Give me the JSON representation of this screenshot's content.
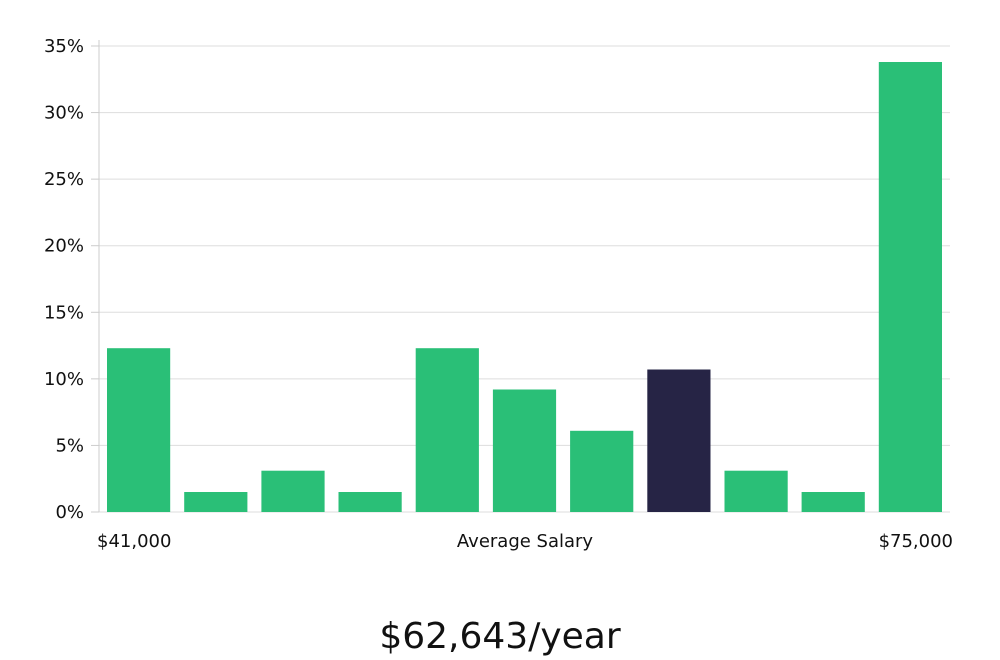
{
  "chart_data": {
    "type": "bar",
    "title": "",
    "xlabel": "Average Salary",
    "ylabel": "",
    "ylim": [
      0,
      35
    ],
    "yticks": [
      "0%",
      "5%",
      "10%",
      "15%",
      "20%",
      "25%",
      "30%",
      "35%"
    ],
    "x_range_labels": {
      "left": "$41,000",
      "right": "$75,000"
    },
    "grid": true,
    "values": [
      12.3,
      1.5,
      3.1,
      1.5,
      12.3,
      9.2,
      6.1,
      10.7,
      3.1,
      1.5,
      33.8
    ],
    "highlight_index": 7,
    "colors": {
      "bar": "#2abf77",
      "highlight": "#262445",
      "grid": "#dddddd",
      "axis": "#cccccc"
    }
  },
  "summary": {
    "average_salary": "$62,643/year"
  }
}
